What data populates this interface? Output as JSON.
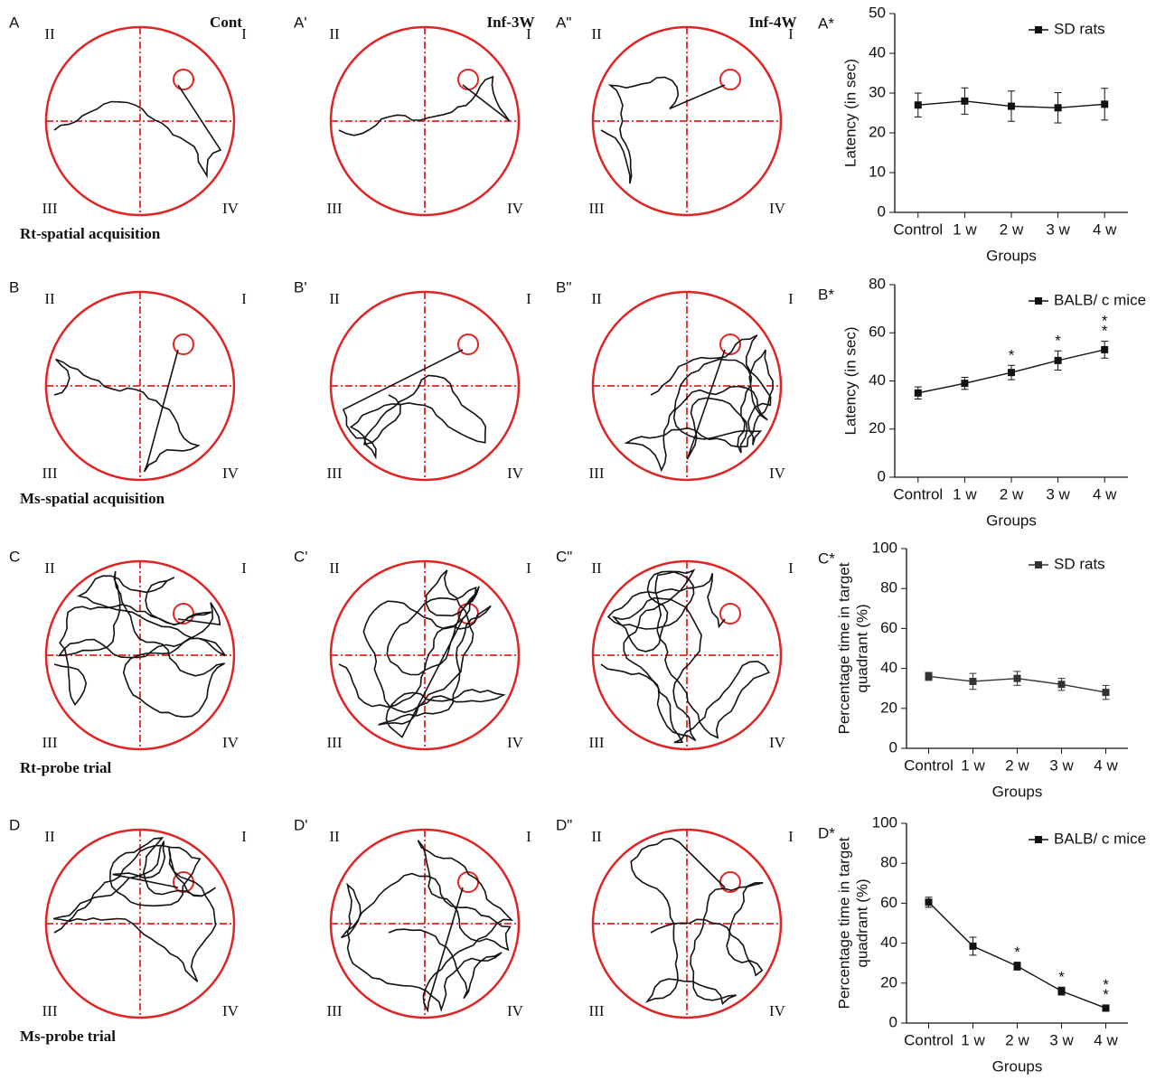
{
  "panels": [
    {
      "label": "A",
      "title": "Cont",
      "quadrants": [
        "II",
        "I",
        "III",
        "IV"
      ]
    },
    {
      "label": "A'",
      "title": "Inf-3W",
      "quadrants": [
        "II",
        "I",
        "III",
        "IV"
      ]
    },
    {
      "label": "A\"",
      "title": "Inf-4W",
      "quadrants": [
        "II",
        "I",
        "III",
        "IV"
      ]
    },
    {
      "label": "B",
      "quadrants": [
        "II",
        "I",
        "III",
        "IV"
      ]
    },
    {
      "label": "B'",
      "quadrants": [
        "II",
        "I",
        "III",
        "IV"
      ]
    },
    {
      "label": "B\"",
      "quadrants": [
        "II",
        "I",
        "III",
        "IV"
      ]
    },
    {
      "label": "C",
      "quadrants": [
        "II",
        "I",
        "III",
        "IV"
      ]
    },
    {
      "label": "C'",
      "quadrants": [
        "II",
        "I",
        "III",
        "IV"
      ]
    },
    {
      "label": "C\"",
      "quadrants": [
        "II",
        "I",
        "III",
        "IV"
      ]
    },
    {
      "label": "D",
      "quadrants": [
        "II",
        "I",
        "III",
        "IV"
      ]
    },
    {
      "label": "D'",
      "quadrants": [
        "II",
        "I",
        "III",
        "IV"
      ]
    },
    {
      "label": "D\"",
      "quadrants": [
        "II",
        "I",
        "III",
        "IV"
      ]
    }
  ],
  "captions": [
    "Rt-spatial acquisition",
    "Ms-spatial acquisition",
    "Rt-probe trial",
    "Ms-probe trial"
  ],
  "chart_data": [
    {
      "type": "line",
      "panel_label": "A*",
      "xlabel": "Groups",
      "ylabel": [
        "Latency (in sec)"
      ],
      "categories": [
        "Control",
        "1 w",
        "2 w",
        "3 w",
        "4 w"
      ],
      "series": [
        {
          "name": "SD rats",
          "color": "#111111",
          "values": [
            27,
            28,
            26.7,
            26.3,
            27.2
          ],
          "errors": [
            3,
            3.3,
            3.8,
            3.8,
            4
          ]
        }
      ],
      "ylim": [
        0,
        50
      ],
      "yticks": [
        0,
        10,
        20,
        30,
        40,
        50
      ]
    },
    {
      "type": "line",
      "panel_label": "B*",
      "xlabel": "Groups",
      "ylabel": [
        "Latency (in sec)"
      ],
      "categories": [
        "Control",
        "1 w",
        "2 w",
        "3 w",
        "4 w"
      ],
      "series": [
        {
          "name": "BALB/ c mice",
          "color": "#111111",
          "values": [
            35,
            39,
            43.5,
            48.5,
            53
          ],
          "errors": [
            2.5,
            2.5,
            3,
            4,
            3.5
          ]
        }
      ],
      "annotations": [
        null,
        null,
        "*",
        "*",
        "**"
      ],
      "ylim": [
        0,
        80
      ],
      "yticks": [
        0,
        20,
        40,
        60,
        80
      ]
    },
    {
      "type": "line",
      "panel_label": "C*",
      "xlabel": "Groups",
      "ylabel": [
        "Percentage time in target",
        "quadrant (%)"
      ],
      "categories": [
        "Control",
        "1 w",
        "2 w",
        "3 w",
        "4 w"
      ],
      "series": [
        {
          "name": "SD rats",
          "color": "#333333",
          "values": [
            36,
            33.5,
            35,
            32,
            28
          ],
          "errors": [
            2,
            4,
            3.5,
            3,
            3.5
          ]
        }
      ],
      "ylim": [
        0,
        100
      ],
      "yticks": [
        0,
        20,
        40,
        60,
        80,
        100
      ]
    },
    {
      "type": "line",
      "panel_label": "D*",
      "xlabel": "Groups",
      "ylabel": [
        "Percentage time in target",
        "quadrant (%)"
      ],
      "categories": [
        "Control",
        "1 w",
        "2 w",
        "3 w",
        "4 w"
      ],
      "series": [
        {
          "name": "BALB/ c mice",
          "color": "#111111",
          "values": [
            60.5,
            38.5,
            28.5,
            16,
            7.5
          ],
          "errors": [
            2.5,
            4.5,
            2,
            2,
            1.5
          ]
        }
      ],
      "annotations": [
        null,
        null,
        "*",
        "*",
        "**"
      ],
      "ylim": [
        0,
        100
      ],
      "yticks": [
        0,
        20,
        40,
        60,
        80,
        100
      ]
    }
  ]
}
